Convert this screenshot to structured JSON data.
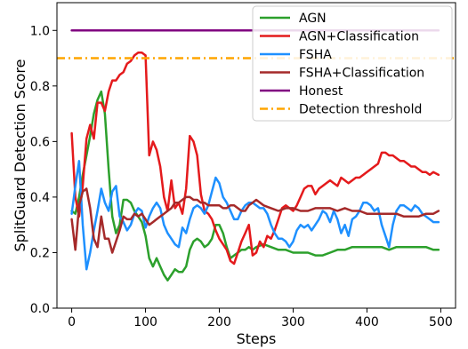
{
  "chart_data": {
    "type": "line",
    "title": "",
    "xlabel": "Steps",
    "ylabel": "SplitGuard Detection Score",
    "xlim": [
      -20,
      520
    ],
    "ylim": [
      0.0,
      1.1
    ],
    "xticks": [
      0,
      100,
      200,
      300,
      400,
      500
    ],
    "yticks": [
      0.0,
      0.2,
      0.4,
      0.6,
      0.8,
      1.0
    ],
    "xtick_labels": [
      "0",
      "100",
      "200",
      "300",
      "400",
      "500"
    ],
    "ytick_labels": [
      "0.0",
      "0.2",
      "0.4",
      "0.6",
      "0.8",
      "1.0"
    ],
    "grid": false,
    "legend_position": "top-right",
    "series": [
      {
        "name": "AGN",
        "color": "#2ca02c",
        "style": "solid",
        "x": [
          0,
          5,
          10,
          15,
          20,
          25,
          30,
          35,
          40,
          45,
          50,
          55,
          60,
          65,
          70,
          75,
          80,
          85,
          90,
          95,
          100,
          105,
          110,
          115,
          120,
          125,
          130,
          135,
          140,
          145,
          150,
          155,
          160,
          165,
          170,
          175,
          180,
          185,
          190,
          195,
          200,
          205,
          210,
          215,
          220,
          225,
          230,
          235,
          240,
          245,
          250,
          260,
          270,
          280,
          290,
          300,
          310,
          320,
          330,
          340,
          350,
          360,
          370,
          380,
          390,
          400,
          410,
          420,
          430,
          440,
          450,
          460,
          470,
          480,
          490,
          497
        ],
        "y": [
          0.35,
          0.34,
          0.4,
          0.48,
          0.55,
          0.62,
          0.7,
          0.75,
          0.78,
          0.7,
          0.5,
          0.33,
          0.27,
          0.3,
          0.39,
          0.39,
          0.38,
          0.35,
          0.33,
          0.31,
          0.26,
          0.18,
          0.15,
          0.18,
          0.15,
          0.12,
          0.1,
          0.12,
          0.14,
          0.13,
          0.13,
          0.15,
          0.21,
          0.24,
          0.25,
          0.24,
          0.22,
          0.23,
          0.25,
          0.3,
          0.3,
          0.27,
          0.22,
          0.18,
          0.19,
          0.2,
          0.21,
          0.21,
          0.22,
          0.21,
          0.22,
          0.23,
          0.22,
          0.21,
          0.21,
          0.2,
          0.2,
          0.2,
          0.19,
          0.19,
          0.2,
          0.21,
          0.21,
          0.22,
          0.22,
          0.22,
          0.22,
          0.22,
          0.21,
          0.22,
          0.22,
          0.22,
          0.22,
          0.22,
          0.21,
          0.21
        ]
      },
      {
        "name": "AGN+Classification",
        "color": "#e41a1c",
        "style": "solid",
        "x": [
          0,
          5,
          10,
          15,
          20,
          25,
          30,
          35,
          40,
          45,
          50,
          55,
          60,
          65,
          70,
          75,
          80,
          85,
          90,
          95,
          100,
          105,
          110,
          115,
          120,
          125,
          130,
          135,
          140,
          145,
          150,
          155,
          160,
          165,
          170,
          175,
          180,
          185,
          190,
          195,
          200,
          205,
          210,
          215,
          220,
          225,
          230,
          235,
          240,
          245,
          250,
          255,
          260,
          265,
          270,
          275,
          280,
          285,
          290,
          295,
          300,
          305,
          310,
          315,
          320,
          325,
          330,
          335,
          340,
          345,
          350,
          355,
          360,
          365,
          370,
          375,
          380,
          385,
          390,
          395,
          400,
          405,
          410,
          415,
          420,
          425,
          430,
          435,
          440,
          445,
          450,
          455,
          460,
          465,
          470,
          475,
          480,
          485,
          490,
          497
        ],
        "y": [
          0.63,
          0.4,
          0.33,
          0.44,
          0.61,
          0.66,
          0.61,
          0.74,
          0.74,
          0.71,
          0.78,
          0.82,
          0.82,
          0.84,
          0.85,
          0.88,
          0.89,
          0.91,
          0.92,
          0.92,
          0.91,
          0.55,
          0.6,
          0.57,
          0.51,
          0.4,
          0.35,
          0.46,
          0.36,
          0.38,
          0.34,
          0.43,
          0.62,
          0.6,
          0.55,
          0.41,
          0.35,
          0.34,
          0.32,
          0.28,
          0.25,
          0.23,
          0.21,
          0.17,
          0.16,
          0.2,
          0.24,
          0.27,
          0.3,
          0.19,
          0.2,
          0.24,
          0.22,
          0.26,
          0.25,
          0.28,
          0.32,
          0.36,
          0.37,
          0.36,
          0.35,
          0.37,
          0.4,
          0.43,
          0.44,
          0.44,
          0.41,
          0.43,
          0.44,
          0.45,
          0.46,
          0.45,
          0.44,
          0.47,
          0.46,
          0.45,
          0.46,
          0.47,
          0.47,
          0.48,
          0.49,
          0.5,
          0.51,
          0.52,
          0.56,
          0.56,
          0.55,
          0.55,
          0.54,
          0.53,
          0.53,
          0.52,
          0.51,
          0.51,
          0.5,
          0.49,
          0.49,
          0.48,
          0.49,
          0.48
        ]
      },
      {
        "name": "FSHA",
        "color": "#1e90ff",
        "style": "solid",
        "x": [
          0,
          5,
          10,
          15,
          20,
          25,
          30,
          35,
          40,
          45,
          50,
          55,
          60,
          65,
          70,
          75,
          80,
          85,
          90,
          95,
          100,
          105,
          110,
          115,
          120,
          125,
          130,
          135,
          140,
          145,
          150,
          155,
          160,
          165,
          170,
          175,
          180,
          185,
          190,
          195,
          200,
          205,
          210,
          215,
          220,
          225,
          230,
          235,
          240,
          245,
          250,
          255,
          260,
          265,
          270,
          275,
          280,
          285,
          290,
          295,
          300,
          305,
          310,
          315,
          320,
          325,
          330,
          335,
          340,
          345,
          350,
          355,
          360,
          365,
          370,
          375,
          380,
          385,
          390,
          395,
          400,
          405,
          410,
          415,
          420,
          425,
          430,
          435,
          440,
          445,
          450,
          455,
          460,
          465,
          470,
          475,
          480,
          485,
          490,
          497
        ],
        "y": [
          0.34,
          0.44,
          0.53,
          0.3,
          0.14,
          0.2,
          0.28,
          0.35,
          0.43,
          0.38,
          0.35,
          0.42,
          0.44,
          0.33,
          0.31,
          0.28,
          0.3,
          0.34,
          0.36,
          0.35,
          0.29,
          0.33,
          0.36,
          0.38,
          0.36,
          0.3,
          0.27,
          0.25,
          0.23,
          0.22,
          0.29,
          0.27,
          0.32,
          0.36,
          0.37,
          0.36,
          0.34,
          0.37,
          0.42,
          0.47,
          0.45,
          0.4,
          0.38,
          0.35,
          0.32,
          0.32,
          0.35,
          0.37,
          0.38,
          0.38,
          0.37,
          0.36,
          0.36,
          0.34,
          0.3,
          0.27,
          0.25,
          0.25,
          0.24,
          0.22,
          0.24,
          0.28,
          0.3,
          0.29,
          0.3,
          0.28,
          0.3,
          0.32,
          0.35,
          0.34,
          0.31,
          0.35,
          0.32,
          0.27,
          0.3,
          0.26,
          0.32,
          0.33,
          0.35,
          0.38,
          0.38,
          0.37,
          0.35,
          0.36,
          0.3,
          0.26,
          0.22,
          0.3,
          0.35,
          0.37,
          0.37,
          0.36,
          0.35,
          0.37,
          0.36,
          0.34,
          0.33,
          0.32,
          0.31,
          0.31
        ]
      },
      {
        "name": "FSHA+Classification",
        "color": "#a52a2a",
        "style": "solid",
        "x": [
          0,
          5,
          10,
          15,
          20,
          25,
          30,
          35,
          40,
          45,
          50,
          55,
          60,
          65,
          70,
          75,
          80,
          85,
          90,
          95,
          100,
          105,
          110,
          115,
          120,
          125,
          130,
          135,
          140,
          145,
          150,
          155,
          160,
          165,
          170,
          175,
          180,
          185,
          190,
          195,
          200,
          205,
          210,
          215,
          220,
          225,
          230,
          235,
          240,
          245,
          250,
          260,
          270,
          280,
          290,
          300,
          310,
          320,
          330,
          340,
          350,
          360,
          370,
          380,
          390,
          400,
          410,
          420,
          430,
          440,
          450,
          460,
          470,
          480,
          490,
          497
        ],
        "y": [
          0.32,
          0.21,
          0.37,
          0.42,
          0.43,
          0.36,
          0.25,
          0.22,
          0.33,
          0.25,
          0.25,
          0.2,
          0.24,
          0.28,
          0.33,
          0.32,
          0.32,
          0.34,
          0.33,
          0.34,
          0.32,
          0.3,
          0.31,
          0.32,
          0.33,
          0.34,
          0.35,
          0.36,
          0.38,
          0.38,
          0.39,
          0.4,
          0.4,
          0.39,
          0.39,
          0.38,
          0.38,
          0.37,
          0.37,
          0.37,
          0.37,
          0.36,
          0.36,
          0.37,
          0.37,
          0.36,
          0.35,
          0.35,
          0.37,
          0.38,
          0.39,
          0.37,
          0.36,
          0.35,
          0.36,
          0.36,
          0.35,
          0.35,
          0.36,
          0.36,
          0.36,
          0.35,
          0.36,
          0.35,
          0.35,
          0.34,
          0.34,
          0.34,
          0.34,
          0.34,
          0.33,
          0.33,
          0.33,
          0.34,
          0.34,
          0.35
        ]
      },
      {
        "name": "Honest",
        "color": "#800080",
        "style": "solid",
        "x": [
          0,
          50,
          100,
          150,
          200,
          250,
          300,
          350,
          400,
          450,
          497
        ],
        "y": [
          1.0,
          1.0,
          1.0,
          1.0,
          1.0,
          1.0,
          1.0,
          1.0,
          1.0,
          1.0,
          1.0
        ]
      },
      {
        "name": "Detection threshold",
        "color": "#ffa500",
        "style": "dashdot",
        "x": [
          -20,
          520
        ],
        "y": [
          0.9,
          0.9
        ]
      }
    ]
  }
}
